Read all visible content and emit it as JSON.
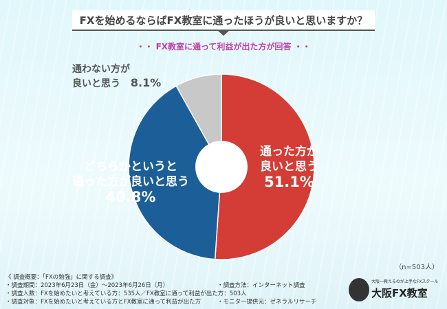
{
  "chart_data": {
    "type": "pie",
    "title": "FXを始めるならばFX教室に通ったほうが良いと思いますか？",
    "subtitle": "・・ FX教室に通って利益が出た方が回答 ・・",
    "slices": [
      {
        "label": "通った方が良いと思う",
        "value": 51.1,
        "display": "51.1%",
        "color": "#d43c36"
      },
      {
        "label": "どちらかというと通った方が良いと思う",
        "value": 40.8,
        "display": "40.8%",
        "color": "#1c5f98"
      },
      {
        "label": "通わない方が良いと思う",
        "value": 8.1,
        "display": "8.1%",
        "color": "#c8c8c8"
      }
    ],
    "sample": "（n=503人）"
  },
  "labels": {
    "s0a": "通った方が",
    "s0b": "良いと思う",
    "s1a": "どちらかというと",
    "s1b": "通った方が良いと思う",
    "s2a": "通わない方が",
    "s2b": "良いと思う"
  },
  "notes": {
    "l0": "《 調査概要：「FXの勉強」に関する調査》",
    "l1": "・調査期間：2023年6月23日（金）～2023年6月26日（月）",
    "l1r": "・調査方法：インターネット調査",
    "l2": "・調査人数：FXを始めたいと考えている方：535人／FX教室に通って利益が出た方：503人",
    "l3": "・調査対象：FXを始めたいと考えている方とFX教室に通って利益が出た方",
    "l3r": "・モニター提供元：ゼネラルリサーチ"
  },
  "logo": {
    "tagline": "大阪一教えるのが上手なFXスクール",
    "name": "大阪FX教室"
  }
}
